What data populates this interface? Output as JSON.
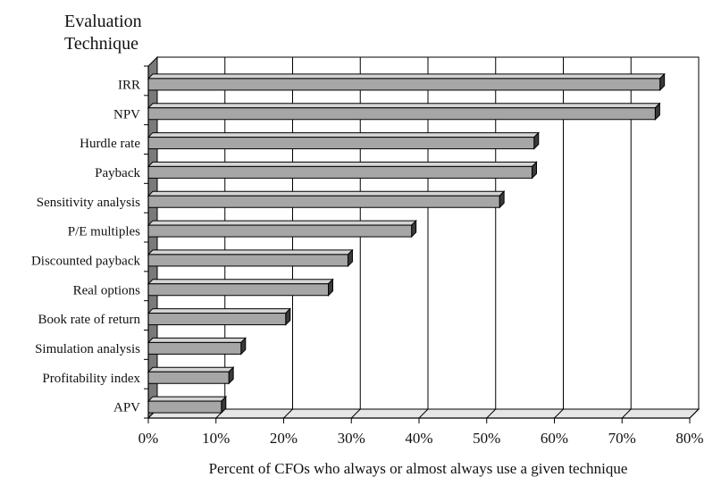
{
  "chart_data": {
    "type": "bar",
    "orientation": "horizontal",
    "title": "Evaluation Technique",
    "title_lines": [
      "Evaluation",
      "Technique"
    ],
    "xlabel": "Percent of CFOs who always or almost always use a given technique",
    "ylabel": "Evaluation Technique",
    "categories": [
      "IRR",
      "NPV",
      "Hurdle rate",
      "Payback",
      "Sensitivity analysis",
      "P/E multiples",
      "Discounted payback",
      "Real options",
      "Book rate of return",
      "Simulation analysis",
      "Profitability index",
      "APV"
    ],
    "values": [
      75.6,
      74.9,
      57.0,
      56.7,
      51.9,
      38.9,
      29.5,
      26.6,
      20.3,
      13.7,
      11.9,
      10.8
    ],
    "value_unit": "%",
    "xlim": [
      0,
      80
    ],
    "xticks": [
      0,
      10,
      20,
      30,
      40,
      50,
      60,
      70,
      80
    ],
    "xtick_labels": [
      "0%",
      "10%",
      "20%",
      "30%",
      "40%",
      "50%",
      "60%",
      "70%",
      "80%"
    ],
    "grid": "vertical",
    "legend": "none",
    "style": "3d",
    "colors": {
      "bar": "#a6a6a6",
      "bar_top": "#d4d4d4",
      "bar_side": "#3a3a3a",
      "wall": "#7a7a7a",
      "floor": "#e6e6e6",
      "gridline": "#000000",
      "axis": "#000000"
    }
  }
}
